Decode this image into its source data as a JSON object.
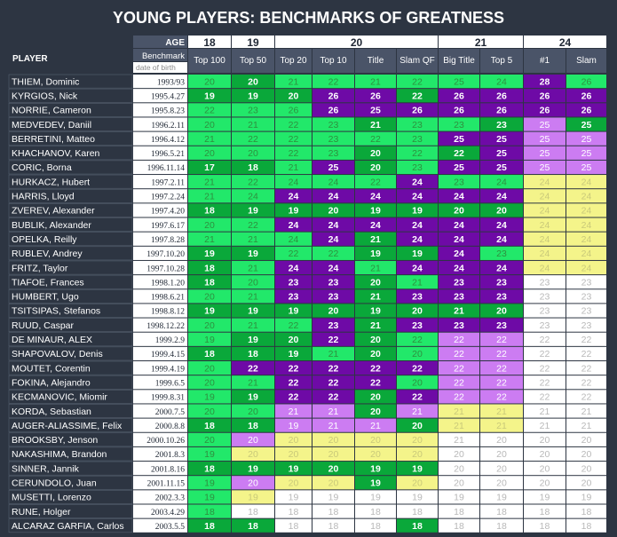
{
  "title": "YOUNG PLAYERS: BENCHMARKS OF GREATNESS",
  "player_header": "PLAYER",
  "age_header": "AGE",
  "benchmark_header": "Benchmark",
  "dob_header": "date of birth",
  "colors": {
    "background": "#2d3542",
    "dark_green": "#0aa83a",
    "green": "#22e86a",
    "purple": "#6e0aa6",
    "lavender": "#cc7cf2",
    "yellow": "#f4f48a",
    "white_cell": "#ffffff",
    "header_row": "#4a5468"
  },
  "chart_data": {
    "type": "table",
    "age_groups": [
      {
        "age": "18",
        "span": 1
      },
      {
        "age": "19",
        "span": 1
      },
      {
        "age": "20",
        "span": 4
      },
      {
        "age": "21",
        "span": 2
      },
      {
        "age": "24",
        "span": 2
      }
    ],
    "benchmarks": [
      "Top 100",
      "Top 50",
      "Top 20",
      "Top 10",
      "Title",
      "Slam QF",
      "Big Title",
      "Top 5",
      "#1",
      "Slam"
    ],
    "rows": [
      {
        "player": "THIEM, Dominic",
        "dob": "1993/93",
        "values": [
          20,
          20,
          21,
          22,
          21,
          22,
          25,
          24,
          28,
          26
        ],
        "cats": [
          "G",
          "D",
          "G",
          "G",
          "G",
          "G",
          "G",
          "G",
          "P",
          "G"
        ]
      },
      {
        "player": "KYRGIOS, Nick",
        "dob": "1995.4.27",
        "values": [
          19,
          19,
          20,
          26,
          26,
          22,
          26,
          26,
          26,
          26
        ],
        "cats": [
          "D",
          "D",
          "D",
          "P",
          "P",
          "D",
          "P",
          "P",
          "P",
          "P"
        ]
      },
      {
        "player": "NORRIE, Cameron",
        "dob": "1995.8.23",
        "values": [
          22,
          23,
          26,
          26,
          25,
          26,
          26,
          26,
          26,
          26
        ],
        "cats": [
          "G",
          "G",
          "G",
          "P",
          "P",
          "P",
          "P",
          "P",
          "P",
          "P"
        ]
      },
      {
        "player": "MEDVEDEV, Daniil",
        "dob": "1996.2.11",
        "values": [
          20,
          21,
          22,
          23,
          21,
          23,
          23,
          23,
          25,
          25
        ],
        "cats": [
          "G",
          "G",
          "G",
          "G",
          "D",
          "G",
          "G",
          "D",
          "L",
          "D"
        ]
      },
      {
        "player": "BERRETINI, Matteo",
        "dob": "1996.4.12",
        "values": [
          21,
          22,
          22,
          23,
          22,
          23,
          25,
          25,
          25,
          25
        ],
        "cats": [
          "G",
          "G",
          "G",
          "G",
          "G",
          "G",
          "P",
          "P",
          "L",
          "L"
        ]
      },
      {
        "player": "KHACHANOV, Karen",
        "dob": "1996.5.21",
        "values": [
          20,
          20,
          22,
          23,
          20,
          22,
          22,
          25,
          25,
          25
        ],
        "cats": [
          "G",
          "G",
          "G",
          "G",
          "D",
          "G",
          "D",
          "P",
          "L",
          "L"
        ]
      },
      {
        "player": "CORIC, Borna",
        "dob": "1996.11.14",
        "values": [
          17,
          18,
          21,
          25,
          20,
          23,
          25,
          25,
          25,
          25
        ],
        "cats": [
          "D",
          "D",
          "G",
          "P",
          "D",
          "G",
          "P",
          "P",
          "L",
          "L"
        ]
      },
      {
        "player": "HURKACZ, Hubert",
        "dob": "1997.2.11",
        "values": [
          21,
          22,
          24,
          24,
          22,
          24,
          23,
          24,
          24,
          24
        ],
        "cats": [
          "G",
          "G",
          "G",
          "G",
          "G",
          "P",
          "G",
          "G",
          "Y",
          "Y"
        ]
      },
      {
        "player": "HARRIS, Lloyd",
        "dob": "1997.2.24",
        "values": [
          21,
          24,
          24,
          24,
          24,
          24,
          24,
          24,
          24,
          24
        ],
        "cats": [
          "G",
          "G",
          "P",
          "P",
          "P",
          "P",
          "P",
          "P",
          "Y",
          "Y"
        ]
      },
      {
        "player": "ZVEREV, Alexander",
        "dob": "1997.4.20",
        "values": [
          18,
          19,
          19,
          20,
          19,
          19,
          20,
          20,
          24,
          24
        ],
        "cats": [
          "D",
          "D",
          "D",
          "D",
          "D",
          "D",
          "D",
          "D",
          "Y",
          "Y"
        ]
      },
      {
        "player": "BUBLIK, Alexander",
        "dob": "1997.6.17",
        "values": [
          20,
          22,
          24,
          24,
          24,
          24,
          24,
          24,
          24,
          24
        ],
        "cats": [
          "G",
          "G",
          "P",
          "P",
          "P",
          "P",
          "P",
          "P",
          "Y",
          "Y"
        ]
      },
      {
        "player": "OPELKA, Reilly",
        "dob": "1997.8.28",
        "values": [
          21,
          21,
          24,
          24,
          21,
          24,
          24,
          24,
          24,
          24
        ],
        "cats": [
          "G",
          "G",
          "G",
          "P",
          "D",
          "P",
          "P",
          "P",
          "Y",
          "Y"
        ]
      },
      {
        "player": "RUBLEV, Andrey",
        "dob": "1997.10.20",
        "values": [
          19,
          19,
          22,
          22,
          19,
          19,
          24,
          23,
          24,
          24
        ],
        "cats": [
          "D",
          "D",
          "G",
          "G",
          "D",
          "D",
          "P",
          "G",
          "Y",
          "Y"
        ]
      },
      {
        "player": "FRITZ, Taylor",
        "dob": "1997.10.28",
        "values": [
          18,
          21,
          24,
          24,
          21,
          24,
          24,
          24,
          24,
          24
        ],
        "cats": [
          "D",
          "G",
          "P",
          "P",
          "G",
          "P",
          "P",
          "P",
          "Y",
          "Y"
        ]
      },
      {
        "player": "TIAFOE, Frances",
        "dob": "1998.1.20",
        "values": [
          18,
          20,
          23,
          23,
          20,
          21,
          23,
          23,
          23,
          23
        ],
        "cats": [
          "D",
          "G",
          "P",
          "P",
          "D",
          "G",
          "P",
          "P",
          "W",
          "W"
        ]
      },
      {
        "player": "HUMBERT, Ugo",
        "dob": "1998.6.21",
        "values": [
          20,
          21,
          23,
          23,
          21,
          23,
          23,
          23,
          23,
          23
        ],
        "cats": [
          "G",
          "G",
          "P",
          "P",
          "D",
          "P",
          "P",
          "P",
          "W",
          "W"
        ]
      },
      {
        "player": "TSITSIPAS, Stefanos",
        "dob": "1998.8.12",
        "values": [
          19,
          19,
          19,
          20,
          19,
          20,
          21,
          20,
          23,
          23
        ],
        "cats": [
          "D",
          "D",
          "D",
          "D",
          "D",
          "D",
          "D",
          "D",
          "W",
          "W"
        ]
      },
      {
        "player": "RUUD, Caspar",
        "dob": "1998.12.22",
        "values": [
          20,
          21,
          22,
          23,
          21,
          23,
          23,
          23,
          23,
          23
        ],
        "cats": [
          "G",
          "G",
          "G",
          "P",
          "D",
          "P",
          "P",
          "P",
          "W",
          "W"
        ]
      },
      {
        "player": "DE MINAUR, ALEX",
        "dob": "1999.2.9",
        "values": [
          19,
          19,
          20,
          22,
          20,
          22,
          22,
          22,
          22,
          22
        ],
        "cats": [
          "G",
          "D",
          "D",
          "P",
          "D",
          "G",
          "L",
          "L",
          "W",
          "W"
        ]
      },
      {
        "player": "SHAPOVALOV, Denis",
        "dob": "1999.4.15",
        "values": [
          18,
          18,
          19,
          21,
          20,
          20,
          22,
          22,
          22,
          22
        ],
        "cats": [
          "D",
          "D",
          "D",
          "G",
          "D",
          "G",
          "L",
          "L",
          "W",
          "W"
        ]
      },
      {
        "player": "MOUTET, Corentin",
        "dob": "1999.4.19",
        "values": [
          20,
          22,
          22,
          22,
          22,
          22,
          22,
          22,
          22,
          22
        ],
        "cats": [
          "G",
          "P",
          "P",
          "P",
          "P",
          "P",
          "L",
          "L",
          "W",
          "W"
        ]
      },
      {
        "player": "FOKINA, Alejandro",
        "dob": "1999.6.5",
        "values": [
          20,
          21,
          22,
          22,
          22,
          20,
          22,
          22,
          22,
          22
        ],
        "cats": [
          "G",
          "G",
          "P",
          "P",
          "P",
          "G",
          "L",
          "L",
          "W",
          "W"
        ]
      },
      {
        "player": "KECMANOVIC, Miomir",
        "dob": "1999.8.31",
        "values": [
          19,
          19,
          22,
          22,
          20,
          22,
          22,
          22,
          22,
          22
        ],
        "cats": [
          "G",
          "D",
          "P",
          "P",
          "D",
          "P",
          "L",
          "L",
          "W",
          "W"
        ]
      },
      {
        "player": "KORDA, Sebastian",
        "dob": "2000.7.5",
        "values": [
          20,
          20,
          21,
          21,
          20,
          21,
          21,
          21,
          21,
          21
        ],
        "cats": [
          "G",
          "G",
          "L",
          "L",
          "D",
          "L",
          "Y",
          "Y",
          "W",
          "W"
        ]
      },
      {
        "player": "AUGER-ALIASSIME, Felix",
        "dob": "2000.8.8",
        "values": [
          18,
          18,
          19,
          21,
          21,
          20,
          21,
          21,
          21,
          21
        ],
        "cats": [
          "D",
          "D",
          "L",
          "L",
          "L",
          "D",
          "Y",
          "Y",
          "W",
          "W"
        ]
      },
      {
        "player": "BROOKSBY, Jenson",
        "dob": "2000.10.26",
        "values": [
          20,
          20,
          20,
          20,
          20,
          20,
          21,
          20,
          20,
          20
        ],
        "cats": [
          "G",
          "L",
          "Y",
          "Y",
          "Y",
          "Y",
          "W",
          "W",
          "W",
          "W"
        ]
      },
      {
        "player": "NAKASHIMA, Brandon",
        "dob": "2001.8.3",
        "values": [
          19,
          20,
          20,
          20,
          20,
          20,
          20,
          20,
          20,
          20
        ],
        "cats": [
          "G",
          "Y",
          "Y",
          "Y",
          "Y",
          "Y",
          "W",
          "W",
          "W",
          "W"
        ]
      },
      {
        "player": "SINNER, Jannik",
        "dob": "2001.8.16",
        "values": [
          18,
          19,
          19,
          20,
          19,
          19,
          20,
          20,
          20,
          20
        ],
        "cats": [
          "D",
          "D",
          "D",
          "D",
          "D",
          "D",
          "W",
          "W",
          "W",
          "W"
        ]
      },
      {
        "player": "CERUNDOLO, Juan",
        "dob": "2001.11.15",
        "values": [
          19,
          20,
          20,
          20,
          19,
          20,
          20,
          20,
          20,
          20
        ],
        "cats": [
          "G",
          "L",
          "Y",
          "Y",
          "D",
          "Y",
          "W",
          "W",
          "W",
          "W"
        ]
      },
      {
        "player": "MUSETTI, Lorenzo",
        "dob": "2002.3.3",
        "values": [
          19,
          19,
          19,
          19,
          19,
          19,
          19,
          19,
          19,
          19
        ],
        "cats": [
          "G",
          "Y",
          "W",
          "W",
          "W",
          "W",
          "W",
          "W",
          "W",
          "W"
        ]
      },
      {
        "player": "RUNE, Holger",
        "dob": "2003.4.29",
        "values": [
          18,
          18,
          18,
          18,
          18,
          18,
          18,
          18,
          18,
          18
        ],
        "cats": [
          "G",
          "W",
          "W",
          "W",
          "W",
          "W",
          "W",
          "W",
          "W",
          "W"
        ]
      },
      {
        "player": "ALCARAZ GARFIA, Carlos",
        "dob": "2003.5.5",
        "values": [
          18,
          18,
          18,
          18,
          18,
          18,
          18,
          18,
          18,
          18
        ],
        "cats": [
          "D",
          "D",
          "W",
          "W",
          "W",
          "D",
          "W",
          "W",
          "W",
          "W"
        ]
      }
    ]
  }
}
